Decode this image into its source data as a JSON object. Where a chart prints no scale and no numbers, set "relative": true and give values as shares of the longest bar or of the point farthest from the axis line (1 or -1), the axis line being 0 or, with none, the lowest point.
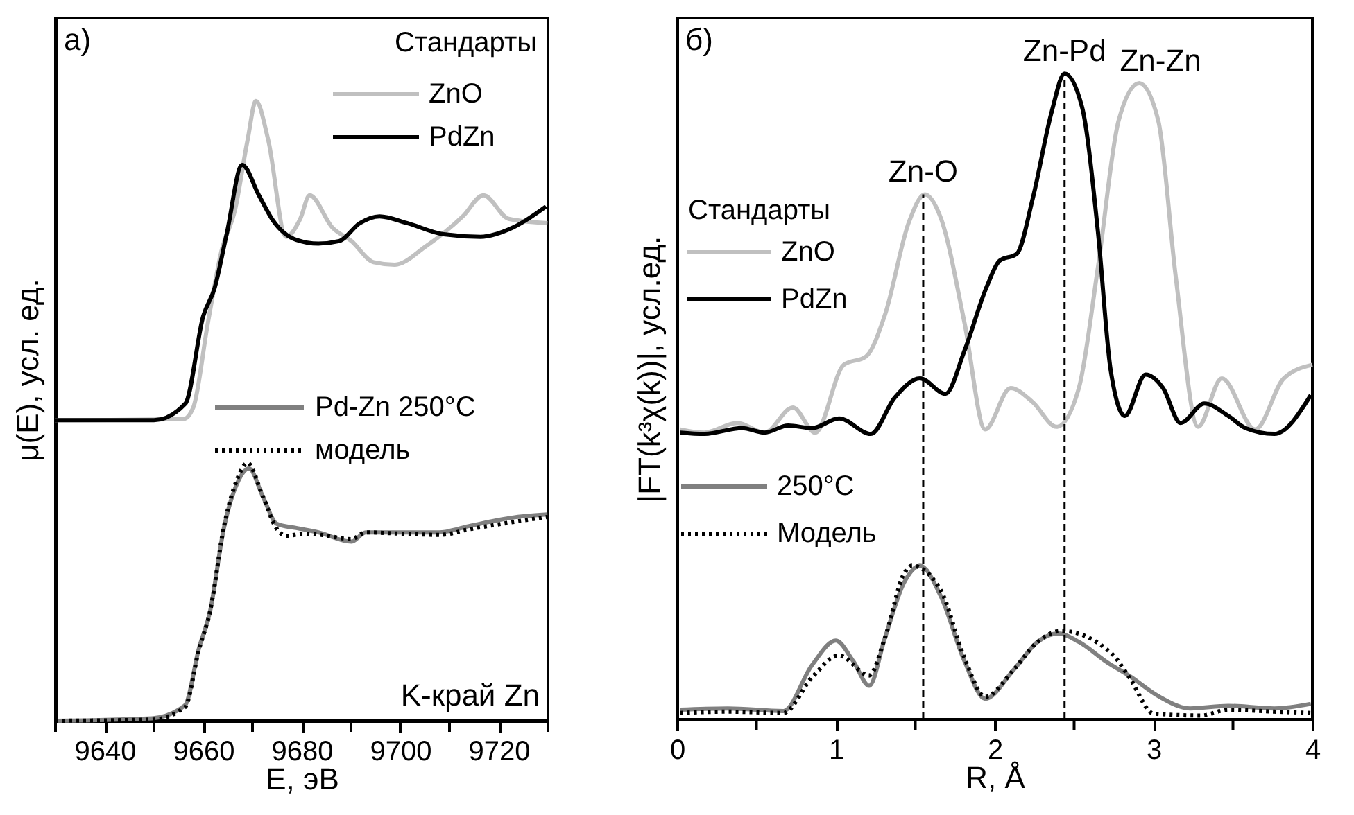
{
  "chart_data": [
    {
      "type": "line",
      "relative": true,
      "xlabel": "E, эВ",
      "ylabel": "μ(E), усл. ед.",
      "legend_title": "Стандарты",
      "legend": "top right",
      "grid": false,
      "xlim": [
        9630,
        9730
      ],
      "xticks": [
        {
          "value": 9630,
          "label": null
        },
        9640,
        {
          "value": 9650,
          "label": null
        },
        9660,
        {
          "value": 9670,
          "label": null
        },
        9680,
        {
          "value": 9690,
          "label": null
        },
        9700,
        {
          "value": 9710,
          "label": null
        },
        9720,
        {
          "value": 9730,
          "label": null
        }
      ],
      "annotations": [
        "а)",
        "K-край Zn"
      ],
      "series": [
        {
          "name": "ZnO",
          "color": "#c0c0c0",
          "line_style": "solid",
          "x": [
            9630,
            9656,
            9658,
            9660.9,
            9663.7,
            9666.5,
            9669,
            9670.7,
            9673.2,
            9676.8,
            9679.7,
            9681.6,
            9686.2,
            9690.1,
            9694.6,
            9698.9,
            9705.1,
            9712.7,
            9716.9,
            9722,
            9729.9
          ],
          "values": [
            0.485,
            0.487,
            0.506,
            0.64,
            0.758,
            0.826,
            0.937,
            1.0,
            0.937,
            0.781,
            0.81,
            0.848,
            0.796,
            0.774,
            0.74,
            0.736,
            0.765,
            0.814,
            0.848,
            0.81,
            0.803
          ]
        },
        {
          "name": "PdZn",
          "color": "#000000",
          "line_style": "solid",
          "x": [
            9630,
            9650,
            9656.4,
            9660,
            9662.3,
            9664.8,
            9667.9,
            9671.3,
            9674.1,
            9678.9,
            9683.4,
            9687.6,
            9691.8,
            9695.8,
            9701.4,
            9708.8,
            9716.3,
            9722.9,
            9729.6
          ],
          "values": [
            0.485,
            0.485,
            0.512,
            0.653,
            0.698,
            0.787,
            0.897,
            0.848,
            0.808,
            0.776,
            0.77,
            0.774,
            0.803,
            0.814,
            0.803,
            0.785,
            0.781,
            0.796,
            0.83
          ]
        },
        {
          "name": "Pd-Zn 250°C",
          "color": "#808080",
          "line_style": "solid",
          "x": [
            9630,
            9649.6,
            9656.3,
            9659.1,
            9661.4,
            9664.2,
            9667,
            9669.3,
            9672.1,
            9674.9,
            9678.9,
            9683.4,
            9690.1,
            9693,
            9699.5,
            9707.9,
            9714.4,
            9723.9,
            9729.9
          ],
          "values": [
            0,
            0.004,
            0.025,
            0.116,
            0.177,
            0.311,
            0.385,
            0.407,
            0.362,
            0.318,
            0.311,
            0.304,
            0.289,
            0.304,
            0.304,
            0.304,
            0.315,
            0.329,
            0.333
          ]
        },
        {
          "name": "модель",
          "color": "#000000",
          "line_style": "dotted",
          "x": [
            9630,
            9649.6,
            9656.3,
            9659.1,
            9661.4,
            9664.2,
            9667,
            9669,
            9672.1,
            9674.9,
            9677,
            9680,
            9684,
            9690,
            9693,
            9700,
            9708,
            9714,
            9724,
            9730
          ],
          "values": [
            0,
            0.002,
            0.022,
            0.114,
            0.177,
            0.313,
            0.392,
            0.416,
            0.362,
            0.31,
            0.298,
            0.302,
            0.3,
            0.293,
            0.304,
            0.302,
            0.3,
            0.309,
            0.322,
            0.329
          ]
        }
      ]
    },
    {
      "type": "line",
      "relative": true,
      "xlabel": "R, Å",
      "ylabel": "|FT(k³χ(k))|, усл.ед.",
      "legend_title": "Стандарты",
      "legend": "left",
      "grid": false,
      "xlim": [
        0,
        4
      ],
      "xticks": [
        0,
        {
          "value": 0.5,
          "label": null
        },
        1,
        {
          "value": 1.5,
          "label": null
        },
        2,
        {
          "value": 2.5,
          "label": null
        },
        3,
        {
          "value": 3.5,
          "label": null
        },
        4
      ],
      "annotations": [
        "б)",
        {
          "text": "Zn-O",
          "x": 1.55,
          "y": 0.813
        },
        {
          "text": "Zn-Pd",
          "x": 2.44,
          "y": 1.0
        },
        {
          "text": "Zn-Zn",
          "x": 2.91,
          "y": 0.985
        }
      ],
      "ref_lines": [
        {
          "axis": "x",
          "value": 1.55,
          "color": "#000000",
          "line_style": "dashed"
        },
        {
          "axis": "x",
          "value": 2.44,
          "color": "#000000",
          "line_style": "dashed"
        }
      ],
      "series": [
        {
          "name": "ZnO",
          "color": "#c0c0c0",
          "line_style": "solid",
          "x": [
            0.02,
            0.17,
            0.38,
            0.55,
            0.73,
            0.87,
            1.05,
            1.19,
            1.31,
            1.46,
            1.56,
            1.66,
            1.81,
            1.94,
            2.1,
            2.24,
            2.39,
            2.53,
            2.65,
            2.78,
            2.91,
            3.03,
            3.14,
            3.28,
            3.43,
            3.64,
            3.82,
            4.0
          ],
          "values": [
            0.449,
            0.444,
            0.459,
            0.444,
            0.483,
            0.444,
            0.549,
            0.562,
            0.627,
            0.77,
            0.813,
            0.777,
            0.614,
            0.449,
            0.513,
            0.491,
            0.453,
            0.513,
            0.7,
            0.927,
            0.985,
            0.927,
            0.685,
            0.453,
            0.528,
            0.449,
            0.528,
            0.549
          ]
        },
        {
          "name": "PdZn",
          "color": "#000000",
          "line_style": "solid",
          "x": [
            0.02,
            0.17,
            0.41,
            0.55,
            0.7,
            0.85,
            1.02,
            1.22,
            1.37,
            1.53,
            1.69,
            1.81,
            1.95,
            2.03,
            2.14,
            2.24,
            2.36,
            2.44,
            2.55,
            2.65,
            2.73,
            2.82,
            2.95,
            3.06,
            3.17,
            3.32,
            3.47,
            3.58,
            3.76,
            3.99
          ],
          "values": [
            0.444,
            0.442,
            0.451,
            0.444,
            0.455,
            0.451,
            0.466,
            0.442,
            0.498,
            0.528,
            0.504,
            0.571,
            0.67,
            0.71,
            0.721,
            0.807,
            0.942,
            1.0,
            0.948,
            0.755,
            0.541,
            0.47,
            0.534,
            0.513,
            0.459,
            0.489,
            0.47,
            0.451,
            0.442,
            0.502
          ]
        },
        {
          "name": "250°C",
          "color": "#808080",
          "line_style": "solid",
          "x": [
            0.02,
            0.32,
            0.67,
            0.85,
            1.0,
            1.11,
            1.21,
            1.31,
            1.43,
            1.53,
            1.66,
            1.81,
            1.94,
            2.12,
            2.27,
            2.4,
            2.53,
            2.71,
            2.85,
            3.03,
            3.23,
            3.47,
            3.76,
            3.99
          ],
          "values": [
            0.015,
            0.017,
            0.013,
            0.084,
            0.122,
            0.09,
            0.052,
            0.127,
            0.212,
            0.238,
            0.191,
            0.09,
            0.032,
            0.077,
            0.12,
            0.133,
            0.12,
            0.088,
            0.067,
            0.036,
            0.017,
            0.021,
            0.017,
            0.024
          ]
        },
        {
          "name": "Модель",
          "color": "#000000",
          "line_style": "dotted",
          "x": [
            0.02,
            0.32,
            0.67,
            0.85,
            1.02,
            1.21,
            1.31,
            1.43,
            1.48,
            1.66,
            1.81,
            1.94,
            2.12,
            2.27,
            2.42,
            2.74,
            2.85,
            3.0,
            3.3,
            3.47,
            3.76,
            3.99
          ],
          "values": [
            0.01,
            0.012,
            0.01,
            0.065,
            0.099,
            0.068,
            0.127,
            0.226,
            0.238,
            0.2,
            0.095,
            0.035,
            0.077,
            0.12,
            0.137,
            0.101,
            0.064,
            0.009,
            0.006,
            0.015,
            0.012,
            0.01
          ]
        }
      ]
    }
  ]
}
